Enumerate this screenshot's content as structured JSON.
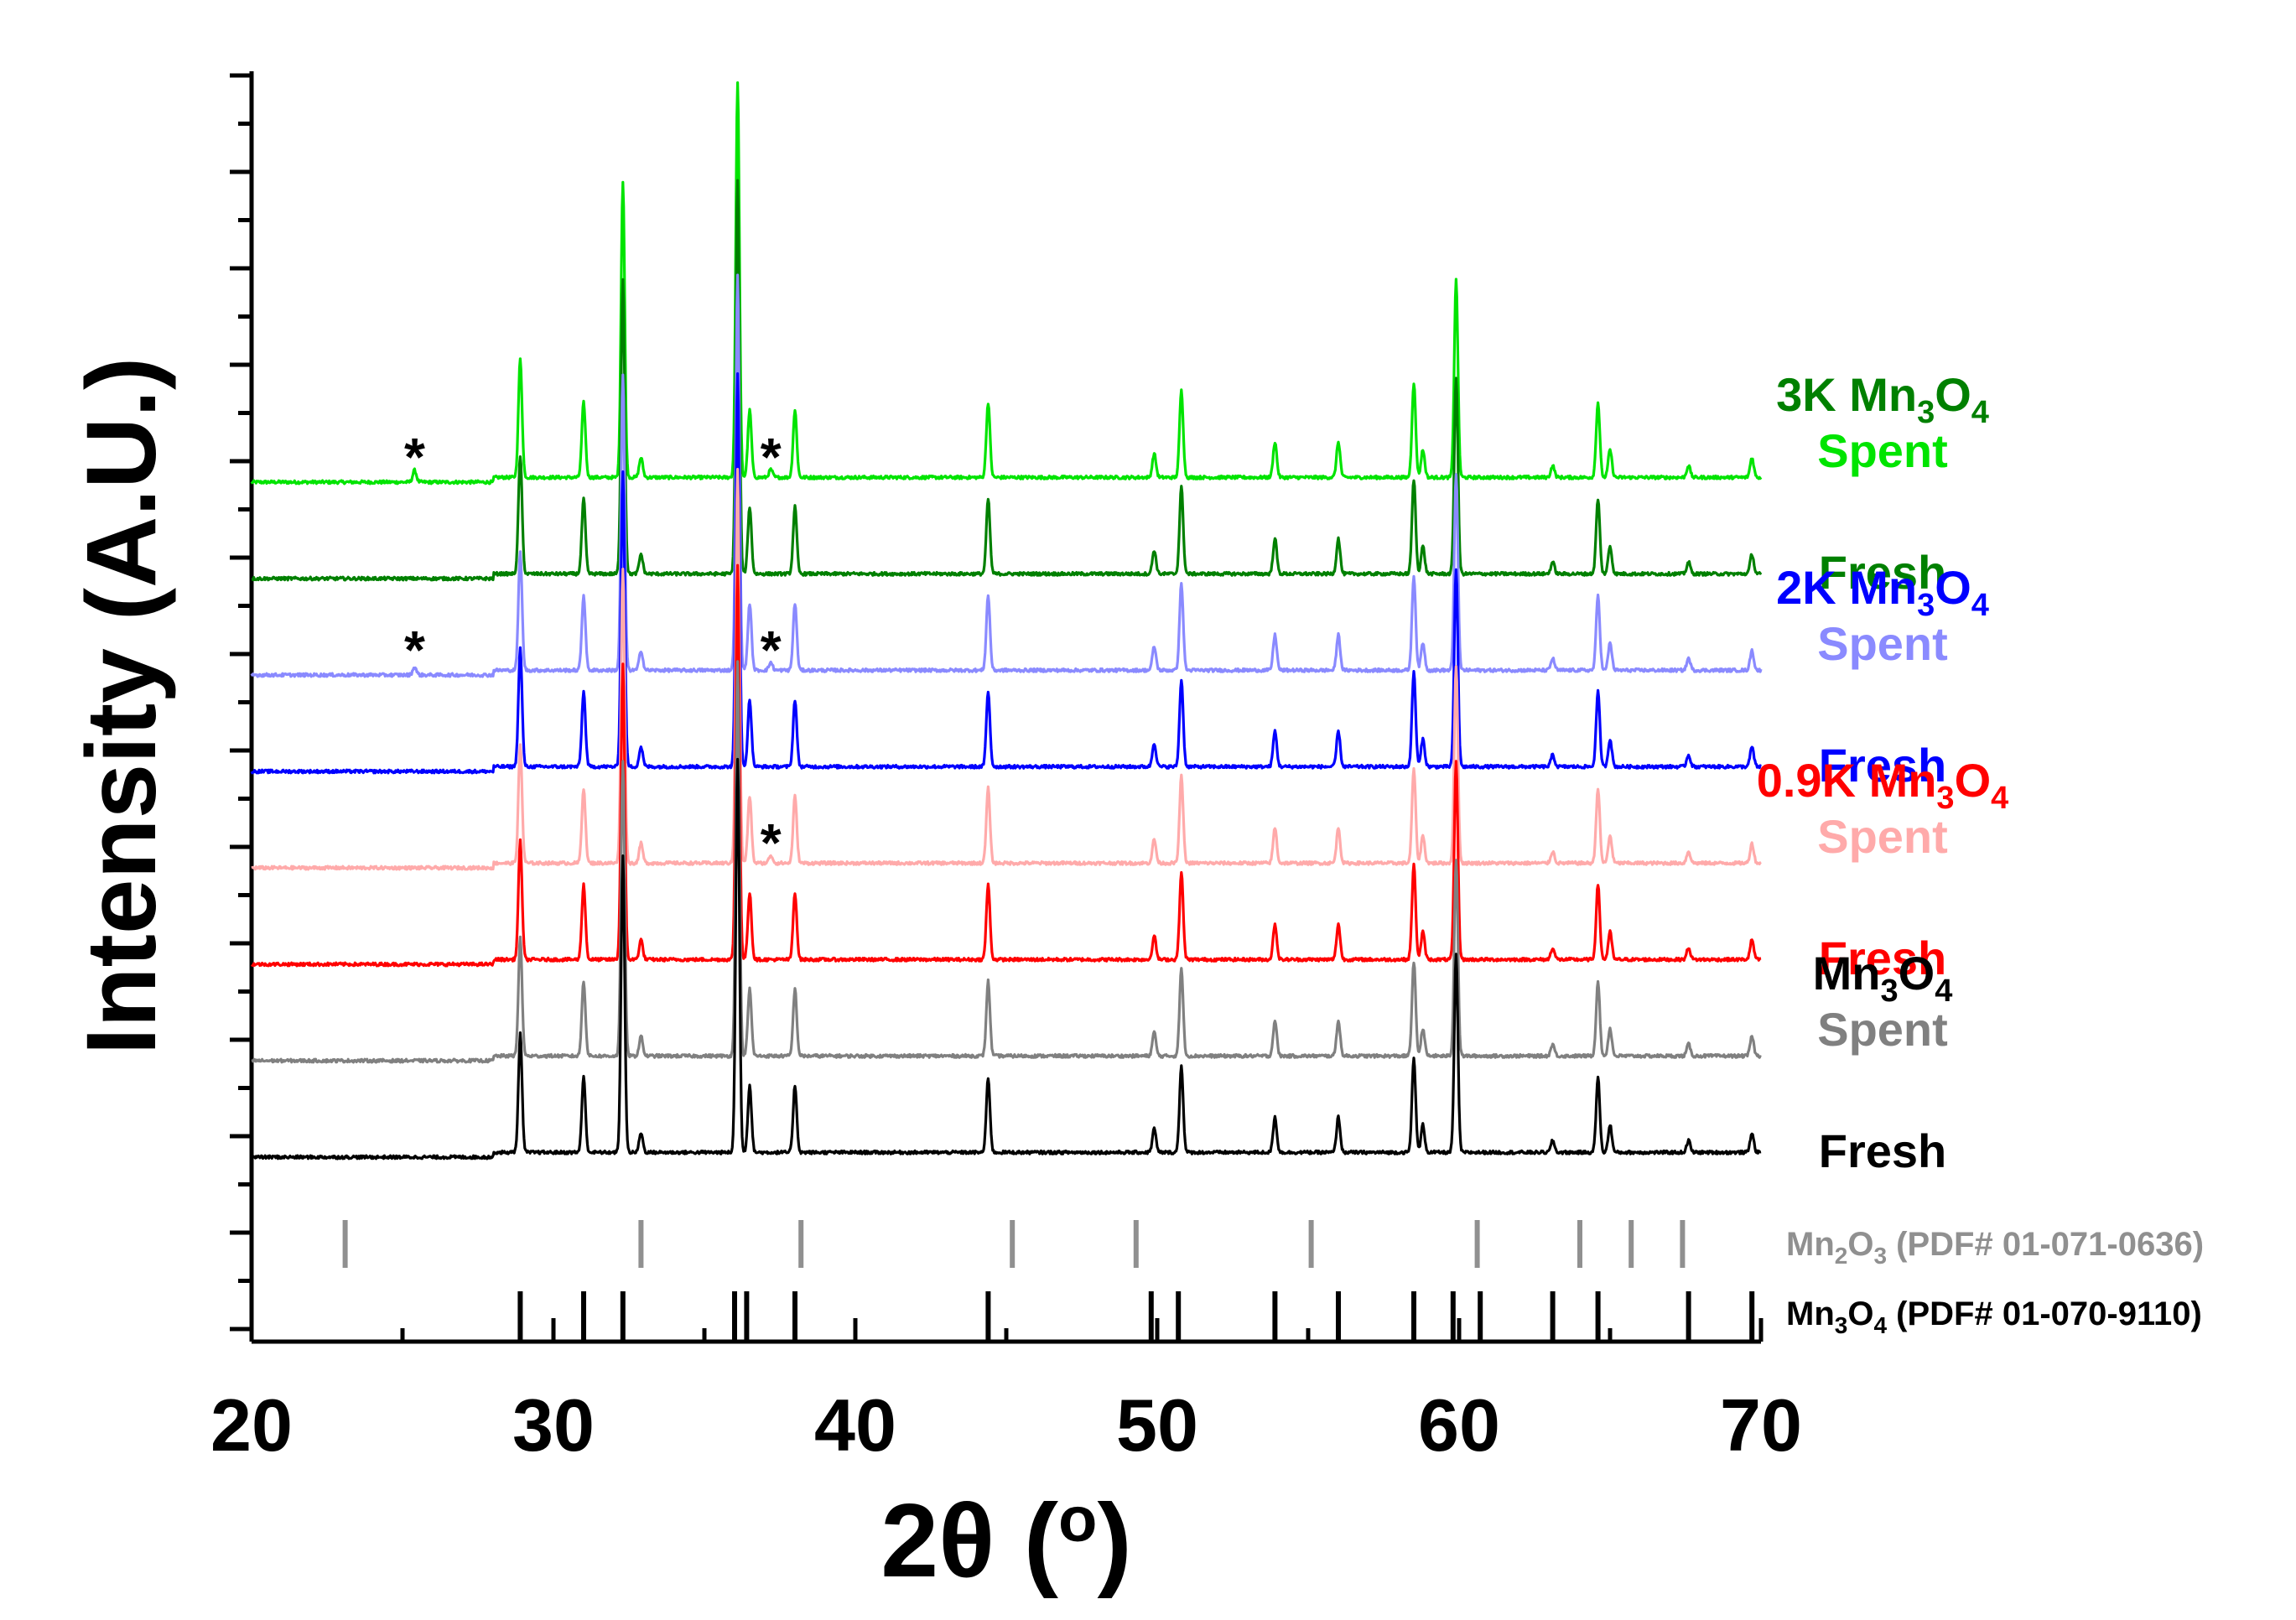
{
  "chart_data": {
    "type": "line",
    "title": "",
    "xlabel": "2θ (o)",
    "ylabel": "Intensity (A.U.)",
    "xlim": [
      20,
      70
    ],
    "xticks": [
      "20",
      "30",
      "40",
      "50",
      "60",
      "70"
    ],
    "peaks": [
      {
        "x": 28.9,
        "h": 0.3
      },
      {
        "x": 31.0,
        "h": 0.19
      },
      {
        "x": 32.3,
        "h": 0.75
      },
      {
        "x": 32.9,
        "h": 0.05
      },
      {
        "x": 36.1,
        "h": 1.0
      },
      {
        "x": 36.5,
        "h": 0.17
      },
      {
        "x": 38.0,
        "h": 0.17
      },
      {
        "x": 44.4,
        "h": 0.19
      },
      {
        "x": 49.9,
        "h": 0.06
      },
      {
        "x": 50.8,
        "h": 0.22
      },
      {
        "x": 53.9,
        "h": 0.09
      },
      {
        "x": 56.0,
        "h": 0.09
      },
      {
        "x": 58.5,
        "h": 0.24
      },
      {
        "x": 58.8,
        "h": 0.07
      },
      {
        "x": 59.9,
        "h": 0.5
      },
      {
        "x": 63.1,
        "h": 0.03
      },
      {
        "x": 64.6,
        "h": 0.19
      },
      {
        "x": 65.0,
        "h": 0.07
      },
      {
        "x": 67.6,
        "h": 0.03
      },
      {
        "x": 69.7,
        "h": 0.05
      }
    ],
    "series": [
      {
        "name": "3K Mn3O4 Spent",
        "group": "3K Mn3O4",
        "state": "Spent",
        "color": "#00e400",
        "offset": 7,
        "extra_peaks": [
          {
            "x": 25.4,
            "h": 0.03
          },
          {
            "x": 37.2,
            "h": 0.02
          }
        ]
      },
      {
        "name": "3K Mn3O4 Fresh",
        "group": "3K Mn3O4",
        "state": "Fresh",
        "color": "#008000",
        "offset": 6,
        "extra_peaks": []
      },
      {
        "name": "2K Mn3O4 Spent",
        "group": "2K Mn3O4",
        "state": "Spent",
        "color": "#8a8aff",
        "offset": 5,
        "extra_peaks": [
          {
            "x": 25.4,
            "h": 0.02
          },
          {
            "x": 37.2,
            "h": 0.02
          }
        ]
      },
      {
        "name": "2K Mn3O4 Fresh",
        "group": "2K Mn3O4",
        "state": "Fresh",
        "color": "#0000ff",
        "offset": 4,
        "extra_peaks": []
      },
      {
        "name": "0.9K Mn3O4 Spent",
        "group": "0.9K Mn3O4",
        "state": "Spent",
        "color": "#ffaaaa",
        "offset": 3,
        "extra_peaks": [
          {
            "x": 37.2,
            "h": 0.02
          }
        ]
      },
      {
        "name": "0.9K Mn3O4 Fresh",
        "group": "0.9K Mn3O4",
        "state": "Fresh",
        "color": "#ff0000",
        "offset": 2,
        "extra_peaks": []
      },
      {
        "name": "Mn3O4 Spent",
        "group": "Mn3O4",
        "state": "Spent",
        "color": "#808080",
        "offset": 1,
        "extra_peaks": []
      },
      {
        "name": "Mn3O4 Fresh",
        "group": "Mn3O4",
        "state": "Fresh",
        "color": "#000000",
        "offset": 0,
        "extra_peaks": []
      }
    ],
    "legend": [
      {
        "text": "3K Mn",
        "sub1": "3",
        "mid": "O",
        "sub2": "4",
        "color": "#008000",
        "series_offset": 7
      },
      {
        "text": "Spent",
        "color": "#00e400",
        "series_offset": 7
      },
      {
        "text": "Fresh",
        "color": "#008000",
        "series_offset": 6
      },
      {
        "text": "2K Mn",
        "sub1": "3",
        "mid": "O",
        "sub2": "4",
        "color": "#0000ff",
        "series_offset": 5
      },
      {
        "text": "Spent",
        "color": "#8a8aff",
        "series_offset": 5
      },
      {
        "text": "Fresh",
        "color": "#0000ff",
        "series_offset": 4
      },
      {
        "text": "0.9K Mn",
        "sub1": "3",
        "mid": "O",
        "sub2": "4",
        "color": "#ff0000",
        "series_offset": 3
      },
      {
        "text": "Spent",
        "color": "#ffaaaa",
        "series_offset": 3
      },
      {
        "text": "Fresh",
        "color": "#ff0000",
        "series_offset": 2
      },
      {
        "text": "Mn",
        "sub1": "3",
        "mid": "O",
        "sub2": "4",
        "color": "#000000",
        "series_offset": 1
      },
      {
        "text": "Spent",
        "color": "#808080",
        "series_offset": 1
      },
      {
        "text": "Fresh",
        "color": "#000000",
        "series_offset": 0
      }
    ],
    "annotations": [
      {
        "text": "*",
        "x": 25.4,
        "series_offset": 7
      },
      {
        "text": "*",
        "x": 37.2,
        "series_offset": 7
      },
      {
        "text": "*",
        "x": 25.4,
        "series_offset": 5
      },
      {
        "text": "*",
        "x": 37.2,
        "series_offset": 5
      },
      {
        "text": "*",
        "x": 37.2,
        "series_offset": 3
      }
    ],
    "reference_patterns": [
      {
        "label_a": "Mn",
        "sub1": "2",
        "label_b": "O",
        "sub2": "3",
        "label_c": " (PDF# 01-071-0636)",
        "color": "#909090",
        "positions": [
          23.1,
          32.9,
          38.2,
          45.2,
          49.3,
          55.1,
          60.6,
          64.0,
          65.7,
          67.4
        ]
      },
      {
        "label_a": "Mn",
        "sub1": "3",
        "label_b": "O",
        "sub2": "4",
        "label_c": " (PDF# 01-070-9110)",
        "color": "#000000",
        "positions": [
          28.9,
          31.0,
          32.3,
          36.0,
          36.4,
          38.0,
          44.4,
          49.8,
          50.7,
          53.9,
          56.0,
          58.5,
          59.8,
          60.7,
          63.1,
          64.6,
          67.6,
          69.7
        ]
      }
    ]
  }
}
